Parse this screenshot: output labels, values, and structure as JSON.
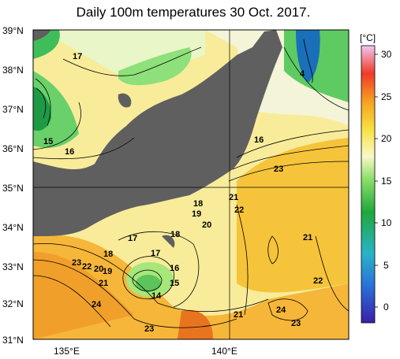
{
  "title": "Daily 100m temperatures 30 Oct. 2017.",
  "colorbar": {
    "unit": "[°C]",
    "ticks": [
      "30",
      "25",
      "20",
      "15",
      "10",
      "5",
      "0"
    ]
  },
  "axes": {
    "lat_labels": [
      "39°N",
      "38°N",
      "37°N",
      "36°N",
      "35°N",
      "34°N",
      "33°N",
      "32°N",
      "31°N"
    ],
    "lon_labels": [
      "135°E",
      "140°E"
    ]
  },
  "contour_labels": [
    "17",
    "4",
    "15",
    "16",
    "16",
    "23",
    "21",
    "22",
    "18",
    "19",
    "20",
    "18",
    "17",
    "17",
    "21",
    "18",
    "23",
    "22",
    "20",
    "19",
    "21",
    "16",
    "15",
    "14",
    "24",
    "22",
    "21",
    "24",
    "23",
    "23"
  ],
  "colors": {
    "land": "#5f5f5f",
    "warm": "#f4a226",
    "mid": "#f7e27a",
    "cool": "#8fe07a",
    "cold": "#1a8f3c"
  }
}
